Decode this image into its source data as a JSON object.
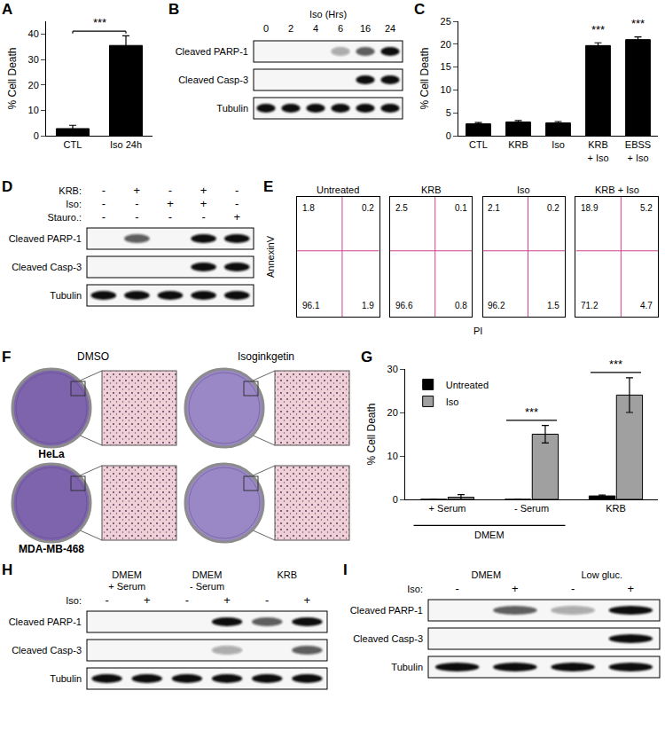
{
  "chart_data": [
    {
      "panel": "A",
      "type": "bar",
      "categories": [
        "CTL",
        "Iso 24h"
      ],
      "values": [
        2.8,
        35.5
      ],
      "errors": [
        1.3,
        3.8
      ],
      "color": "#000000",
      "y_label": "% Cell Death",
      "ylim": [
        0,
        45
      ],
      "yticks": [
        0,
        10,
        20,
        30,
        40
      ],
      "grid": false,
      "significance": [
        {
          "text": "***",
          "from": "CTL",
          "to": "Iso 24h"
        }
      ]
    },
    {
      "panel": "C",
      "type": "bar",
      "categories": [
        "CTL",
        "KRB",
        "Iso",
        "KRB + Iso",
        "EBSS + Iso"
      ],
      "values": [
        2.6,
        3.0,
        2.8,
        19.7,
        21.0
      ],
      "errors": [
        0.3,
        0.3,
        0.3,
        0.6,
        0.6
      ],
      "color": "#000000",
      "y_label": "% Cell Death",
      "ylim": [
        0,
        25
      ],
      "yticks": [
        0,
        5,
        10,
        15,
        20,
        25
      ],
      "grid": false,
      "significance": [
        {
          "text": "***",
          "at": "KRB + Iso"
        },
        {
          "text": "***",
          "at": "EBSS + Iso"
        }
      ]
    },
    {
      "panel": "G",
      "type": "bar",
      "categories": [
        "+ Serum",
        "- Serum",
        "KRB"
      ],
      "series": [
        {
          "name": "Untreated",
          "color": "#000000",
          "values": [
            0,
            0,
            0.8
          ],
          "errors": [
            0,
            0,
            0.2
          ]
        },
        {
          "name": "Iso",
          "color": "#a0a0a0",
          "values": [
            0.5,
            15,
            24
          ],
          "errors": [
            0.6,
            2,
            4
          ]
        }
      ],
      "groups": [
        {
          "text": "DMEM",
          "from": "+ Serum",
          "to": "- Serum"
        }
      ],
      "y_label": "% Cell Death",
      "ylim": [
        0,
        30
      ],
      "yticks": [
        0,
        10,
        20,
        30
      ],
      "grid": false,
      "legend": "upper left",
      "significance": [
        {
          "text": "***",
          "at": "- Serum"
        },
        {
          "text": "***",
          "at": "KRB"
        }
      ]
    }
  ],
  "flow": {
    "panel": "E",
    "type": "scatter",
    "x_label": "PI",
    "y_label": "AnnexinV",
    "xlim": [
      0,
      100
    ],
    "ylim": [
      0,
      100
    ],
    "tick_labels": false,
    "gate": {
      "x": 55,
      "y": 55
    },
    "plots": [
      {
        "title": "Untreated",
        "quadrants": {
          "upper_left": 1.8,
          "upper_right": 0.2,
          "lower_left": 96.1,
          "lower_right": 1.9
        }
      },
      {
        "title": "KRB",
        "quadrants": {
          "upper_left": 2.5,
          "upper_right": 0.1,
          "lower_left": 96.6,
          "lower_right": 0.8
        }
      },
      {
        "title": "Iso",
        "quadrants": {
          "upper_left": 2.1,
          "upper_right": 0.2,
          "lower_left": 96.2,
          "lower_right": 1.5
        }
      },
      {
        "title": "KRB + Iso",
        "quadrants": {
          "upper_left": 18.9,
          "upper_right": 5.2,
          "lower_left": 71.2,
          "lower_right": 4.7
        }
      }
    ]
  },
  "colony": {
    "panel": "F",
    "columns": [
      "DMSO",
      "Isoginkgetin"
    ],
    "rows": [
      "HeLa",
      "MDA-MB-468"
    ]
  },
  "blots": [
    {
      "panel": "B",
      "title": "Iso (Hrs)",
      "lane_labels": [
        "0",
        "2",
        "4",
        "6",
        "16",
        "24"
      ],
      "rows": [
        {
          "name": "Cleaved PARP-1",
          "bands": [
            0,
            0,
            0,
            1,
            2,
            3
          ]
        },
        {
          "name": "Cleaved Casp-3",
          "bands": [
            0,
            0,
            0,
            0,
            3,
            3
          ]
        },
        {
          "name": "Tubulin",
          "bands": [
            3,
            3,
            3,
            3,
            3,
            3
          ]
        }
      ]
    },
    {
      "panel": "D",
      "conditions": [
        {
          "name": "KRB:",
          "marks": [
            "-",
            "+",
            "-",
            "+",
            "-"
          ]
        },
        {
          "name": "Iso:",
          "marks": [
            "-",
            "-",
            "+",
            "+",
            "-"
          ]
        },
        {
          "name": "Stauro.:",
          "marks": [
            "-",
            "-",
            "-",
            "-",
            "+"
          ]
        }
      ],
      "rows": [
        {
          "name": "Cleaved PARP-1",
          "bands": [
            0,
            2,
            0,
            3,
            3
          ]
        },
        {
          "name": "Cleaved Casp-3",
          "bands": [
            0,
            0,
            0,
            3,
            3
          ]
        },
        {
          "name": "Tubulin",
          "bands": [
            3,
            3,
            3,
            3,
            3
          ]
        }
      ]
    },
    {
      "panel": "H",
      "groups": [
        {
          "lines": [
            "DMEM",
            "+ Serum"
          ],
          "lanes": 2
        },
        {
          "lines": [
            "DMEM",
            "- Serum"
          ],
          "lanes": 2
        },
        {
          "lines": [
            "KRB"
          ],
          "lanes": 2
        }
      ],
      "conditions": [
        {
          "name": "Iso:",
          "marks": [
            "-",
            "+",
            "-",
            "+",
            "-",
            "+"
          ]
        }
      ],
      "rows": [
        {
          "name": "Cleaved PARP-1",
          "bands": [
            0,
            0,
            0,
            3,
            2,
            3
          ]
        },
        {
          "name": "Cleaved Casp-3",
          "bands": [
            0,
            0,
            0,
            1,
            0,
            2
          ]
        },
        {
          "name": "Tubulin",
          "bands": [
            3,
            3,
            3,
            3,
            3,
            3
          ]
        }
      ]
    },
    {
      "panel": "I",
      "groups": [
        {
          "lines": [
            "DMEM"
          ],
          "lanes": 2
        },
        {
          "lines": [
            "Low gluc."
          ],
          "lanes": 2
        }
      ],
      "conditions": [
        {
          "name": "Iso:",
          "marks": [
            "-",
            "+",
            "-",
            "+"
          ]
        }
      ],
      "rows": [
        {
          "name": "Cleaved PARP-1",
          "bands": [
            0,
            2,
            1,
            3
          ]
        },
        {
          "name": "Cleaved Casp-3",
          "bands": [
            0,
            0,
            0,
            3
          ]
        },
        {
          "name": "Tubulin",
          "bands": [
            3,
            3,
            3,
            3
          ]
        }
      ]
    }
  ]
}
